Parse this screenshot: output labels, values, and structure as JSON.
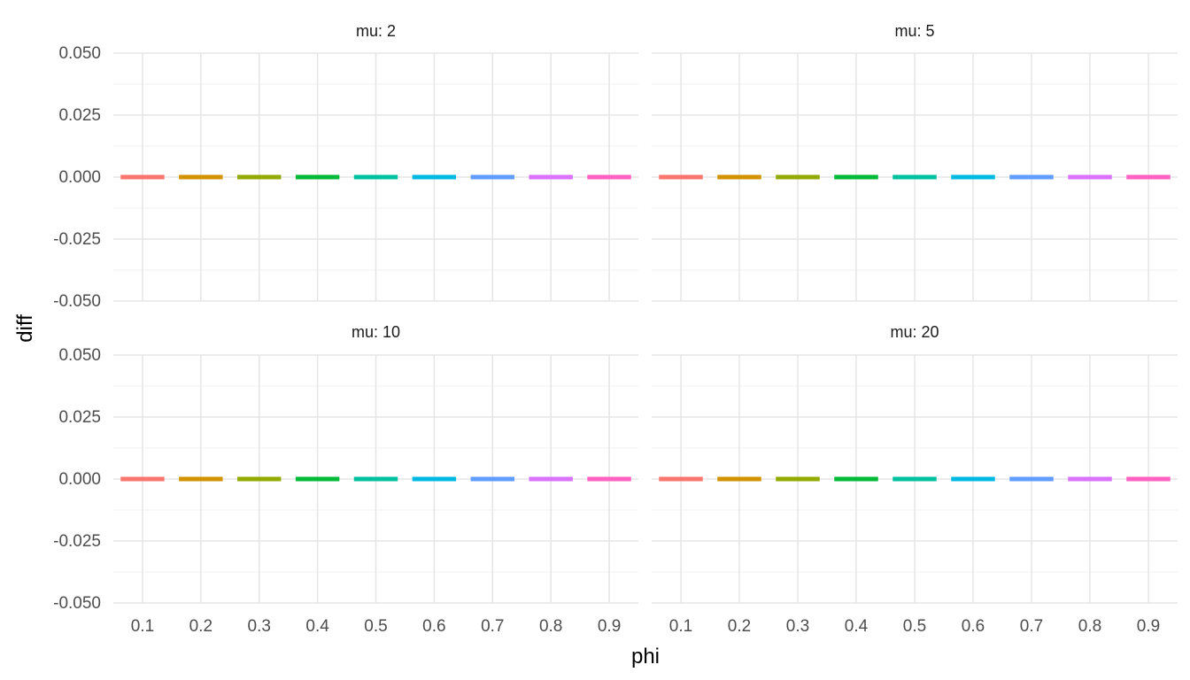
{
  "chart_data": {
    "type": "bar",
    "xlabel": "phi",
    "ylabel": "diff",
    "categories": [
      "0.1",
      "0.2",
      "0.3",
      "0.4",
      "0.5",
      "0.6",
      "0.7",
      "0.8",
      "0.9"
    ],
    "ylim": [
      -0.05,
      0.05
    ],
    "yticks": [
      "-0.050",
      "-0.025",
      "0.000",
      "0.025",
      "0.050"
    ],
    "grid": true,
    "legend": "none",
    "colors": [
      "#F8766D",
      "#D39200",
      "#93AA00",
      "#00BA38",
      "#00C19F",
      "#00B9E3",
      "#619CFF",
      "#DB72FB",
      "#FF61C3"
    ],
    "facets": [
      {
        "label": "mu: 2",
        "values": [
          0,
          0,
          0,
          0,
          0,
          0,
          0,
          0,
          0
        ]
      },
      {
        "label": "mu: 5",
        "values": [
          0,
          0,
          0,
          0,
          0,
          0,
          0,
          0,
          0
        ]
      },
      {
        "label": "mu: 10",
        "values": [
          0,
          0,
          0,
          0,
          0,
          0,
          0,
          0,
          0
        ]
      },
      {
        "label": "mu: 20",
        "values": [
          0,
          0,
          0,
          0,
          0,
          0,
          0,
          0,
          0
        ]
      }
    ]
  }
}
